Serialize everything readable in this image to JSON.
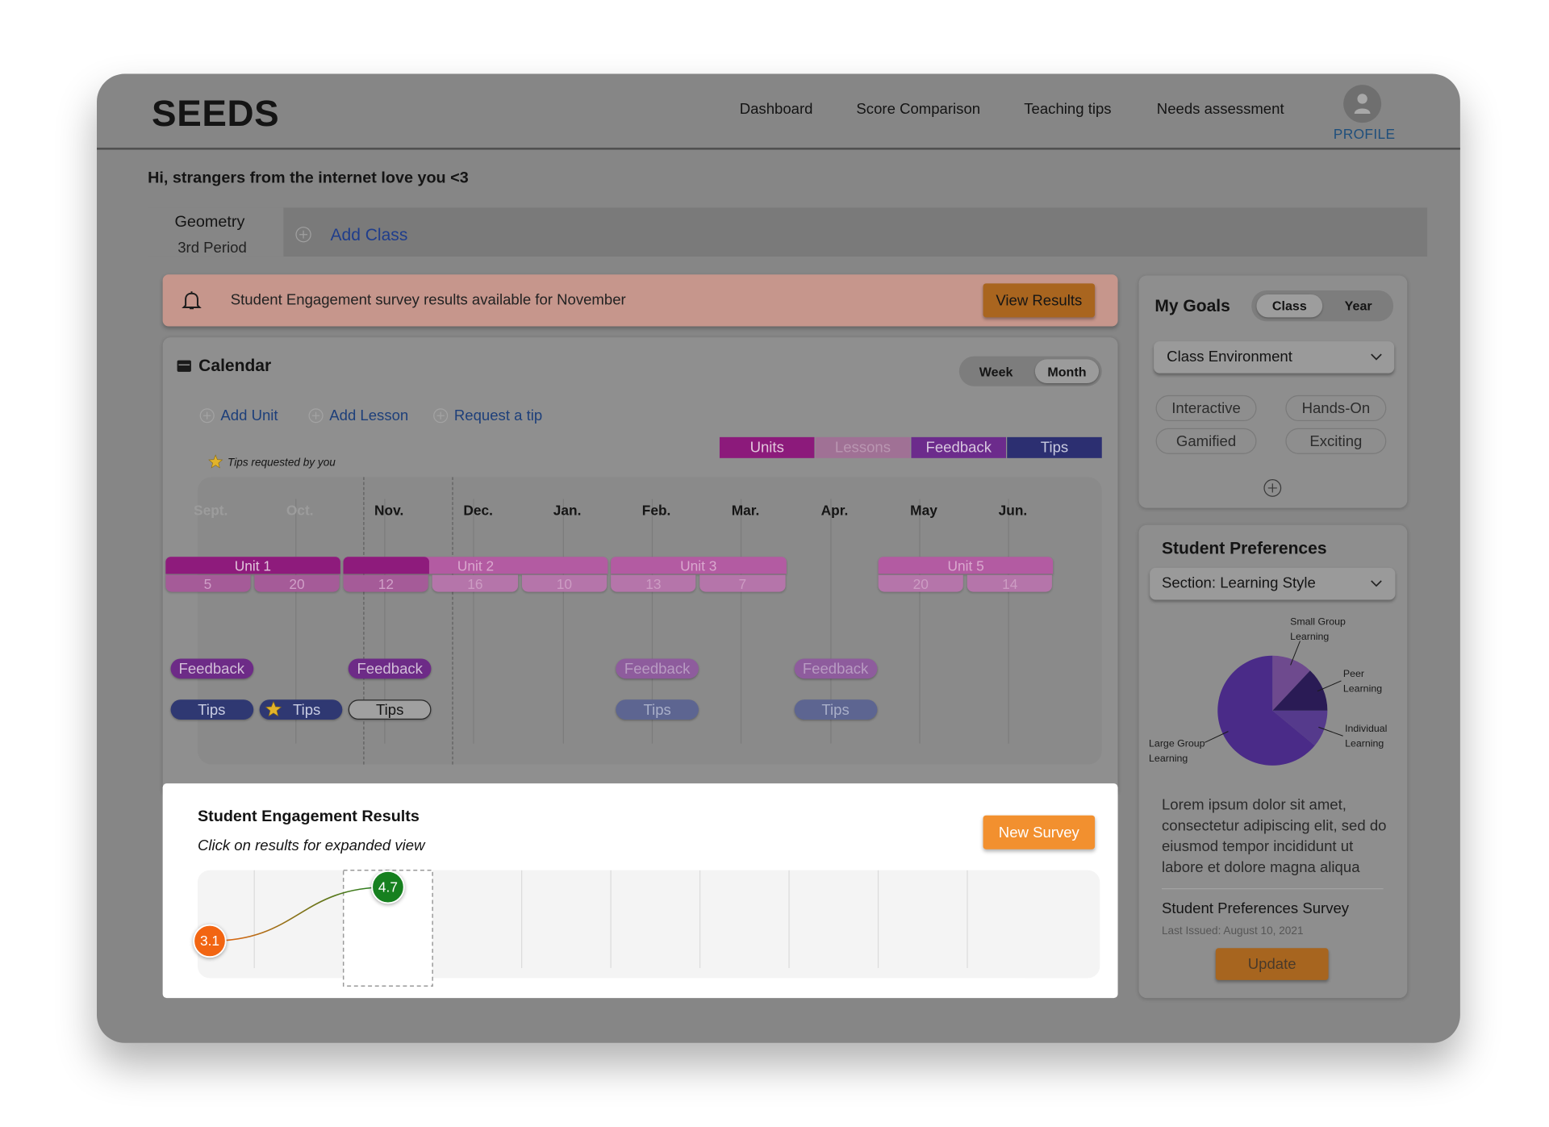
{
  "header": {
    "logo": "SEEDS",
    "nav": [
      "Dashboard",
      "Score Comparison",
      "Teaching tips",
      "Needs assessment"
    ],
    "profile": "PROFILE"
  },
  "greeting": "Hi, strangers from the internet love you <3",
  "class_tabs": {
    "active": {
      "name": "Geometry",
      "period": "3rd Period"
    },
    "add": "Add Class"
  },
  "alert": {
    "text": "Student Engagement survey results available for November",
    "button": "View Results"
  },
  "calendar": {
    "title": "Calendar",
    "views": [
      "Week",
      "Month"
    ],
    "active_view": "Month",
    "actions": [
      "Add Unit",
      "Add Lesson",
      "Request a tip"
    ],
    "legend": [
      "Units",
      "Lessons",
      "Feedback",
      "Tips"
    ],
    "note": "Tips requested by you",
    "current": "Nov.",
    "months": [
      {
        "name": "Sept.",
        "feedback": "Feedback",
        "tips": "Tips"
      },
      {
        "name": "Oct.",
        "tips": "Tips",
        "starred": true
      },
      {
        "name": "Nov.",
        "feedback": "Feedback",
        "tips": "Tips"
      },
      {
        "name": "Dec."
      },
      {
        "name": "Jan."
      },
      {
        "name": "Feb.",
        "feedback": "Feedback",
        "tips": "Tips"
      },
      {
        "name": "Mar."
      },
      {
        "name": "Apr.",
        "feedback": "Feedback",
        "tips": "Tips"
      },
      {
        "name": "May"
      },
      {
        "name": "Jun."
      }
    ],
    "units": [
      {
        "name": "Unit 1",
        "lessons": [
          "5",
          "20"
        ]
      },
      {
        "name": "Unit 2",
        "lessons": [
          "12",
          "16",
          "10"
        ]
      },
      {
        "name": "Unit 3",
        "lessons": [
          "13",
          "7"
        ]
      },
      null,
      {
        "name": "Unit 5",
        "lessons": [
          "20",
          "14"
        ]
      }
    ]
  },
  "goals": {
    "title": "My Goals",
    "toggle": [
      "Class",
      "Year"
    ],
    "active": "Class",
    "dropdown": "Class Environment",
    "tags": [
      "Interactive",
      "Hands-On",
      "Gamified",
      "Exciting"
    ]
  },
  "preferences": {
    "title": "Student Preferences",
    "dropdown": "Section: Learning Style",
    "chart_data": {
      "type": "pie",
      "categories": [
        "Small Group Learning",
        "Peer Learning",
        "Individual Learning",
        "Large Group Learning"
      ],
      "values": [
        12,
        13,
        11,
        64
      ],
      "colors": [
        "#6e4a8e",
        "#2a1b55",
        "#553a8c",
        "#4a2b88"
      ]
    },
    "text": "Lorem ipsum dolor sit amet, consectetur adipiscing elit, sed do eiusmod tempor incididunt ut labore et dolore magna aliqua",
    "survey": {
      "title": "Student Preferences Survey",
      "issued": "Last Issued: August 10, 2021",
      "button": "Update"
    }
  },
  "engagement": {
    "title": "Student Engagement Results",
    "subtitle": "Click on results for expanded view",
    "button": "New Survey",
    "chart_data": {
      "type": "line",
      "x": [
        1,
        3
      ],
      "values": [
        3.1,
        4.7
      ],
      "point_colors": [
        "#f26512",
        "#16801f"
      ],
      "xlim": [
        0.5,
        10.5
      ],
      "ylim": [
        2,
        5.2
      ]
    }
  }
}
